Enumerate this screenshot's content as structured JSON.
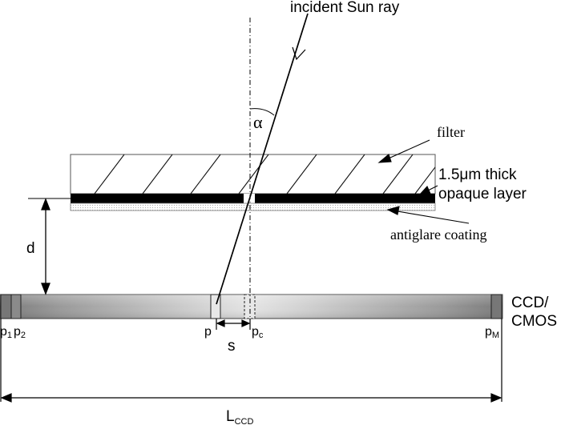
{
  "labels": {
    "incident_ray": "incident Sun ray",
    "angle": "α",
    "filter": "filter",
    "opaque_layer_line1": "1.5μm thick",
    "opaque_layer_line2": "opaque layer",
    "antiglare": "antiglare coating",
    "distance": "d",
    "sensor_line1": "CCD/",
    "sensor_line2": "CMOS",
    "pixel_1": "p",
    "pixel_1_sub": "1",
    "pixel_2": "p",
    "pixel_2_sub": "2",
    "pixel_i": "p",
    "pixel_c": "p",
    "pixel_c_sub": "c",
    "pixel_M": "p",
    "pixel_M_sub": "M",
    "shift": "s",
    "length": "L",
    "length_sub": "CCD"
  }
}
